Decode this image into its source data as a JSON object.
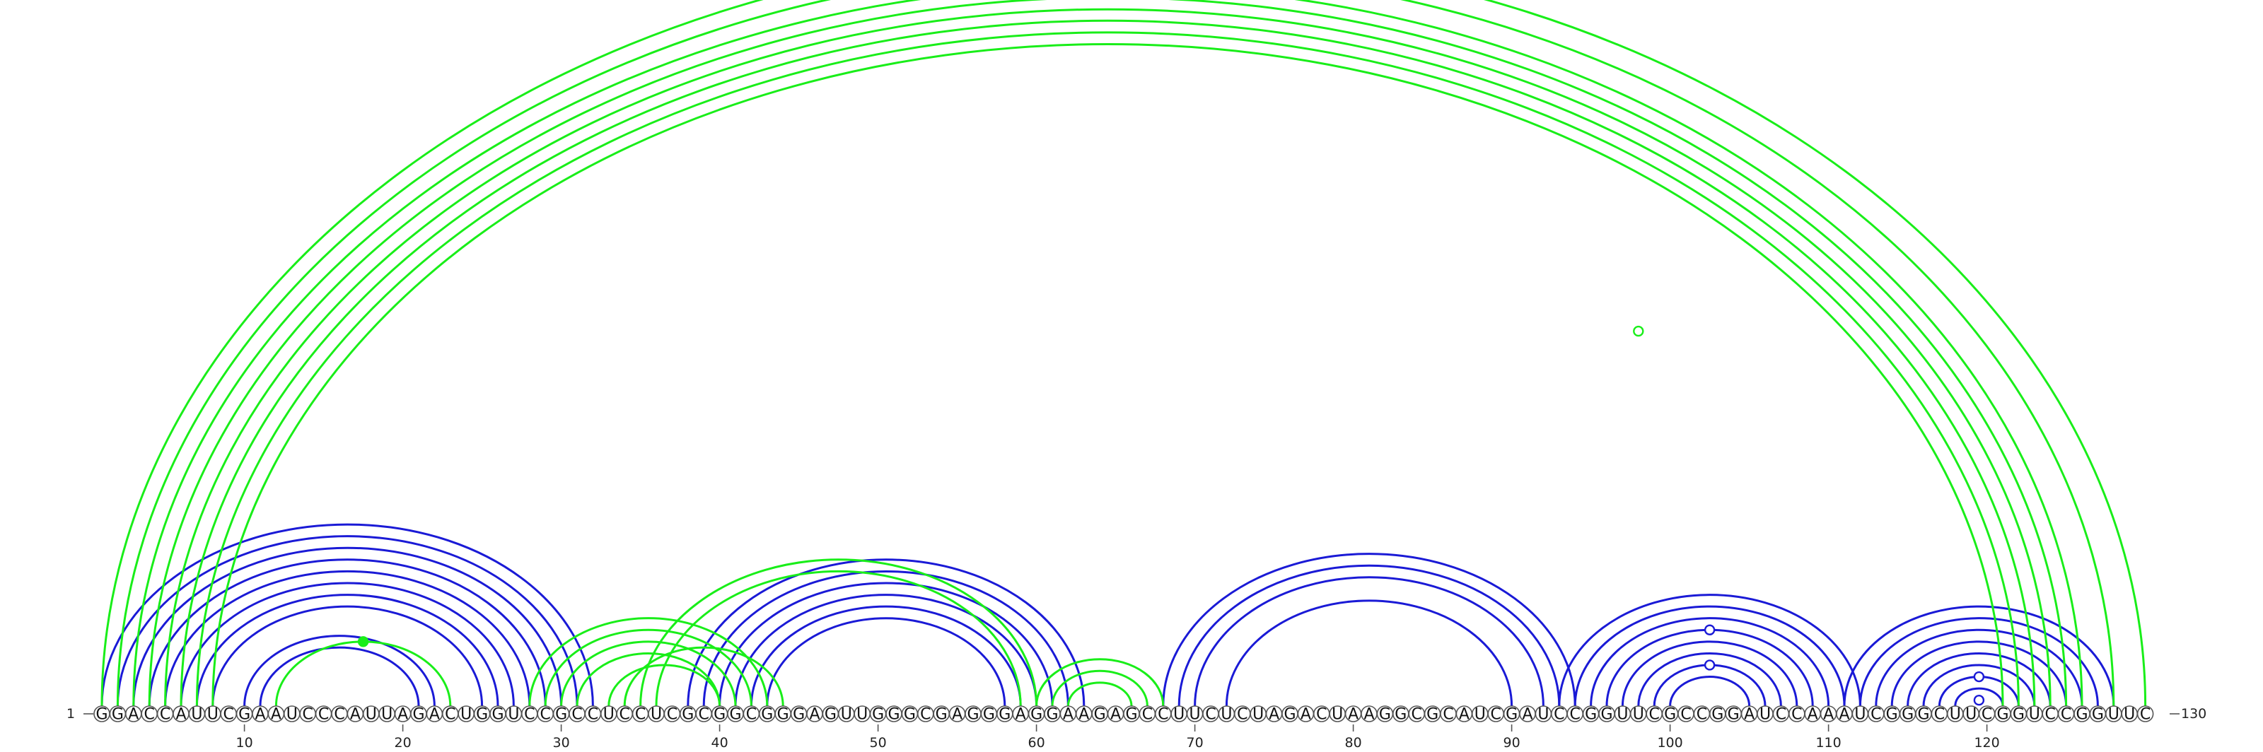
{
  "sequence": "GGACCAUUCGAAUCCCAUUAGACUGGUCCGCCUCCUCGCGGCGGGAGUUGGGCGAGGGAGGAAGAGCCUUCUCUAGACUAAGGCGCAUCGAUCCGGUUCGCCGGAUCCAAAUCGGGCUUCGGUCCGGUUC",
  "start_label": "1",
  "end_label": "130",
  "ticks": [
    "10",
    "20",
    "30",
    "40",
    "50",
    "60",
    "70",
    "80",
    "90",
    "100",
    "110",
    "120"
  ],
  "colors": {
    "green": "#19ee19",
    "blue": "#1a1ad6"
  },
  "base_pairs": {
    "green": [
      [
        1,
        130
      ],
      [
        2,
        128
      ],
      [
        3,
        126
      ],
      [
        4,
        125
      ],
      [
        5,
        124
      ],
      [
        6,
        123
      ],
      [
        7,
        122
      ],
      [
        8,
        121
      ],
      [
        12,
        23
      ],
      [
        28,
        43
      ],
      [
        29,
        42
      ],
      [
        30,
        41
      ],
      [
        31,
        40
      ],
      [
        33,
        40
      ],
      [
        34,
        44
      ],
      [
        35,
        60
      ],
      [
        36,
        59
      ],
      [
        60,
        68
      ],
      [
        61,
        67
      ],
      [
        62,
        66
      ]
    ],
    "blue": [
      [
        1,
        32
      ],
      [
        2,
        31
      ],
      [
        3,
        30
      ],
      [
        4,
        29
      ],
      [
        5,
        28
      ],
      [
        6,
        27
      ],
      [
        7,
        26
      ],
      [
        8,
        25
      ],
      [
        10,
        22
      ],
      [
        11,
        21
      ],
      [
        38,
        63
      ],
      [
        39,
        62
      ],
      [
        40,
        61
      ],
      [
        41,
        60
      ],
      [
        42,
        59
      ],
      [
        43,
        58
      ],
      [
        68,
        94
      ],
      [
        69,
        93
      ],
      [
        70,
        92
      ],
      [
        72,
        90
      ],
      [
        93,
        112
      ],
      [
        94,
        111
      ],
      [
        95,
        110
      ],
      [
        96,
        109
      ],
      [
        97,
        108
      ],
      [
        98,
        107
      ],
      [
        99,
        106
      ],
      [
        100,
        105
      ],
      [
        111,
        128
      ],
      [
        112,
        127
      ],
      [
        113,
        126
      ],
      [
        114,
        125
      ],
      [
        115,
        124
      ],
      [
        116,
        123
      ],
      [
        117,
        122
      ],
      [
        118,
        121
      ]
    ]
  },
  "markers": [
    {
      "at": [
        66,
        130
      ],
      "style": "open",
      "color": "green"
    },
    {
      "at": [
        12,
        23
      ],
      "style": "filled",
      "color": "green"
    },
    {
      "at": [
        117,
        122
      ],
      "style": "open",
      "color": "blue"
    },
    {
      "at": [
        96,
        109
      ],
      "style": "open",
      "color": "blue"
    },
    {
      "at": [
        99,
        106
      ],
      "style": "open",
      "color": "blue"
    },
    {
      "at": [
        119,
        120
      ],
      "style": "open",
      "color": "blue"
    }
  ]
}
